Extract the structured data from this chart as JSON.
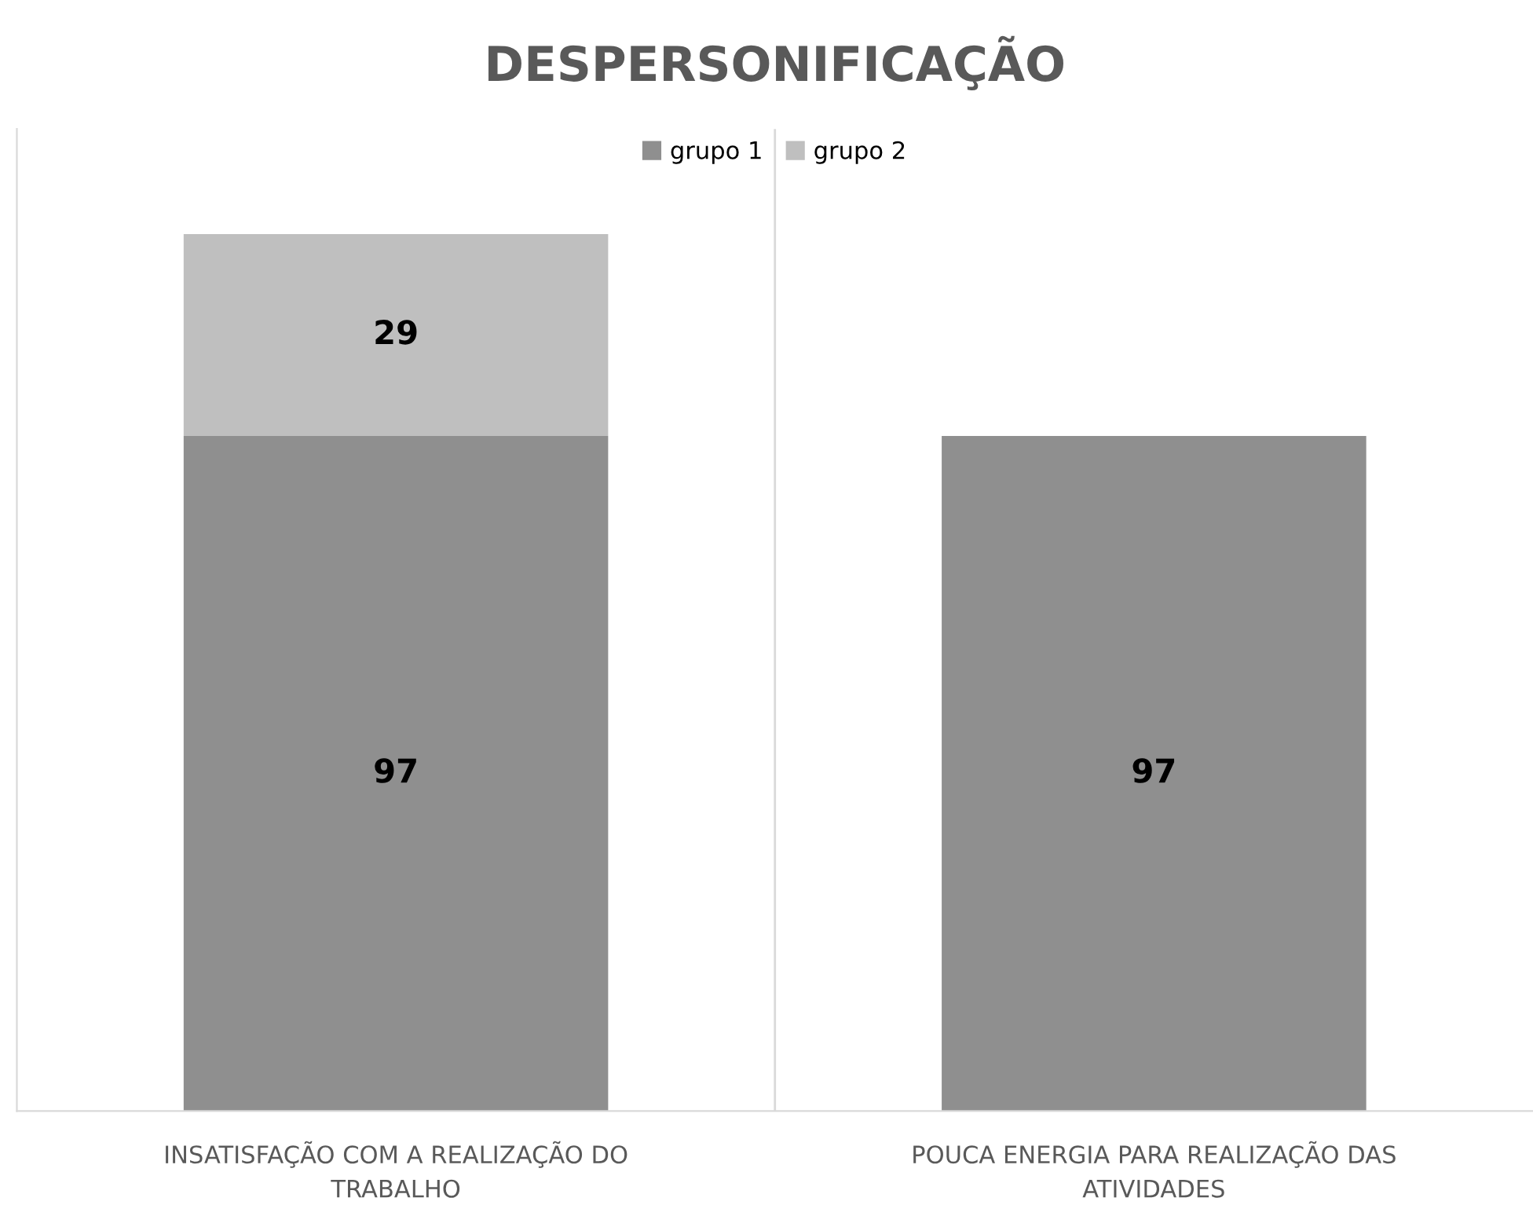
{
  "chart_data": {
    "type": "bar",
    "title": "DESPERSONIFICAÇÃO",
    "categories": [
      "INSATISFAÇÃO COM A REALIZAÇÃO DO\nTRABALHO",
      "POUCA ENERGIA PARA REALIZAÇÃO DAS\nATIVIDADES"
    ],
    "series": [
      {
        "name": "grupo 1",
        "color": "#8f8f8f",
        "values": [
          97,
          97
        ]
      },
      {
        "name": "grupo 2",
        "color": "#bfbfbf",
        "values": [
          29,
          null
        ]
      }
    ],
    "stacked": true,
    "data_labels": true,
    "grid": "x",
    "legend": "top"
  }
}
